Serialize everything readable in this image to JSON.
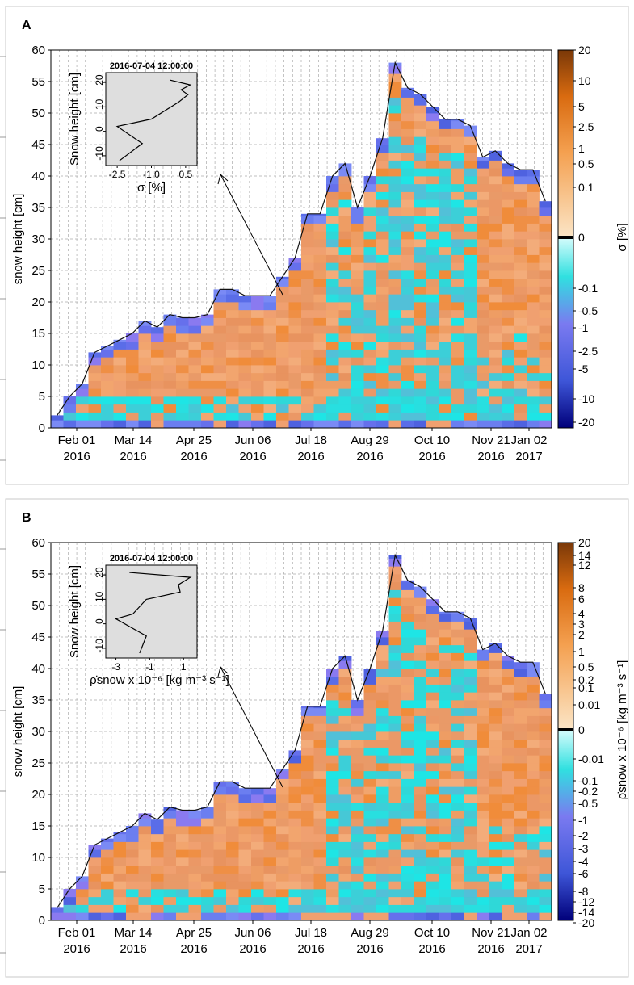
{
  "chart_data": [
    {
      "type": "heatmap",
      "panel_label": "A",
      "xlabel": "",
      "ylabel": "snow height [cm]",
      "ylim": [
        0,
        60
      ],
      "y_ticks": [
        "0",
        "5",
        "10",
        "15",
        "20",
        "25",
        "30",
        "35",
        "40",
        "45",
        "50",
        "55",
        "60"
      ],
      "x_tick_labels": [
        {
          "date": "Feb 01",
          "year": "2016"
        },
        {
          "date": "Mar 14",
          "year": "2016"
        },
        {
          "date": "Apr 25",
          "year": "2016"
        },
        {
          "date": "Jun 06",
          "year": "2016"
        },
        {
          "date": "Jul 18",
          "year": "2016"
        },
        {
          "date": "Aug 29",
          "year": "2016"
        },
        {
          "date": "Oct 10",
          "year": "2016"
        },
        {
          "date": "Nov 21",
          "year": "2016"
        },
        {
          "date": "Jan 02",
          "year": "2017"
        }
      ],
      "grid": true,
      "snow_surface_heights_cm": [
        2,
        5,
        7,
        12,
        13,
        14,
        15,
        17,
        16,
        18,
        17.5,
        17.5,
        18,
        22,
        22,
        21,
        21,
        21,
        24,
        27,
        34,
        34,
        40,
        42,
        35,
        40,
        46,
        58,
        54,
        53,
        51,
        49,
        49,
        48,
        43,
        44,
        42,
        41,
        41,
        36
      ],
      "colorbar": {
        "label": "σ [%]",
        "positive_ticks": [
          "20",
          "10",
          "5",
          "2.5",
          "1",
          "0.5",
          "0.1"
        ],
        "zero_tick": "0",
        "negative_ticks": [
          "-0.1",
          "-0.5",
          "-1",
          "-2.5",
          "-5",
          "-10",
          "-20"
        ]
      },
      "inset": {
        "title": "2016-07-04 12:00:00",
        "ylabel": "Snow height [cm]",
        "xlabel": "σ [%]",
        "x_ticks": [
          "-2.5",
          "-1.0",
          "0.5"
        ],
        "y_ticks": [
          "20",
          "10",
          "0",
          "-10"
        ],
        "profile": [
          [
            -2.4,
            -12
          ],
          [
            -1.4,
            -5
          ],
          [
            -2.5,
            2
          ],
          [
            -1.0,
            5
          ],
          [
            0.2,
            12
          ],
          [
            0.6,
            15
          ],
          [
            0.3,
            17
          ],
          [
            0.7,
            19
          ],
          [
            -0.2,
            21
          ]
        ]
      }
    },
    {
      "type": "heatmap",
      "panel_label": "B",
      "xlabel": "",
      "ylabel": "snow height [cm]",
      "ylim": [
        0,
        60
      ],
      "y_ticks": [
        "0",
        "5",
        "10",
        "15",
        "20",
        "25",
        "30",
        "35",
        "40",
        "45",
        "50",
        "55",
        "60"
      ],
      "x_tick_labels": [
        {
          "date": "Feb 01",
          "year": "2016"
        },
        {
          "date": "Mar 14",
          "year": "2016"
        },
        {
          "date": "Apr 25",
          "year": "2016"
        },
        {
          "date": "Jun 06",
          "year": "2016"
        },
        {
          "date": "Jul 18",
          "year": "2016"
        },
        {
          "date": "Aug 29",
          "year": "2016"
        },
        {
          "date": "Oct 10",
          "year": "2016"
        },
        {
          "date": "Nov 21",
          "year": "2016"
        },
        {
          "date": "Jan 02",
          "year": "2017"
        }
      ],
      "grid": true,
      "snow_surface_heights_cm": [
        2,
        5,
        7,
        12,
        13,
        14,
        15,
        17,
        16,
        18,
        17.5,
        17.5,
        18,
        22,
        22,
        21,
        21,
        21,
        24,
        27,
        34,
        34,
        40,
        42,
        35,
        40,
        46,
        58,
        54,
        53,
        51,
        49,
        49,
        48,
        43,
        44,
        42,
        41,
        41,
        36
      ],
      "colorbar": {
        "label": "ρ̇snow x 10⁻⁶ [kg m⁻³ s⁻¹]",
        "positive_ticks": [
          "20",
          "14",
          "12",
          "8",
          "6",
          "4",
          "3",
          "2",
          "1",
          "0.5",
          "0.2",
          "0.1",
          "0.01"
        ],
        "zero_tick": "0",
        "negative_ticks": [
          "-0.01",
          "-0.1",
          "-0.2",
          "-0.5",
          "-1",
          "-2",
          "-3",
          "-4",
          "-6",
          "-8",
          "-12",
          "-14",
          "-20"
        ]
      },
      "inset": {
        "title": "2016-07-04 12:00:00",
        "ylabel": "Snow height [cm]",
        "xlabel": "ρ̇snow x 10⁻⁶ [kg m⁻³ s⁻¹]",
        "x_ticks": [
          "-3",
          "-1",
          "1"
        ],
        "y_ticks": [
          "20",
          "10",
          "0",
          "-10"
        ],
        "profile": [
          [
            -1.6,
            -12
          ],
          [
            -1.2,
            -5
          ],
          [
            -3.0,
            2
          ],
          [
            -2.0,
            4
          ],
          [
            -1.2,
            10
          ],
          [
            0.8,
            13
          ],
          [
            0.7,
            16
          ],
          [
            1.4,
            19
          ],
          [
            -2.2,
            21
          ]
        ]
      }
    }
  ]
}
